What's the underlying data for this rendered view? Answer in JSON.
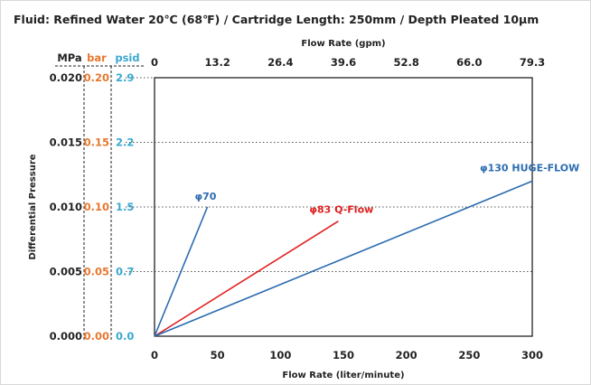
{
  "chart_data": {
    "type": "line",
    "title": "Fluid: Refined Water 20℃ (68℉) / Cartridge Length: 250mm / Depth Pleated 10μm",
    "xlabel": "Flow Rate (liter/minute)",
    "x2label": "Flow Rate (gpm)",
    "ylabel": "Differential Pressure",
    "xlim": [
      0,
      300
    ],
    "ylim": [
      0,
      0.02
    ],
    "x_ticks": [
      "0",
      "50",
      "100",
      "150",
      "200",
      "250",
      "300"
    ],
    "x2_ticks": [
      "0",
      "13.2",
      "26.4",
      "39.6",
      "52.8",
      "66.0",
      "79.3"
    ],
    "y_units": [
      {
        "unit": "MPa",
        "ticks": [
          "0.000",
          "0.005",
          "0.010",
          "0.015",
          "0.020"
        ],
        "color": "#222222"
      },
      {
        "unit": "bar",
        "ticks": [
          "0.00",
          "0.05",
          "0.10",
          "0.15",
          "0.20"
        ],
        "color": "#e8772e"
      },
      {
        "unit": "psid",
        "ticks": [
          "0.0",
          "0.7",
          "1.5",
          "2.2",
          "2.9"
        ],
        "color": "#3aa8cf"
      }
    ],
    "grid": "dotted horizontal",
    "series": [
      {
        "name": "φ70",
        "color": "#2b6cb0",
        "x": [
          0,
          42
        ],
        "y": [
          0,
          0.01
        ]
      },
      {
        "name": "φ83 Q-Flow",
        "color": "#e02020",
        "x": [
          0,
          146
        ],
        "y": [
          0,
          0.0089
        ]
      },
      {
        "name": "φ130 HUGE-FLOW",
        "color": "#2b6cb0",
        "x": [
          0,
          300
        ],
        "y": [
          0,
          0.012
        ]
      }
    ]
  }
}
